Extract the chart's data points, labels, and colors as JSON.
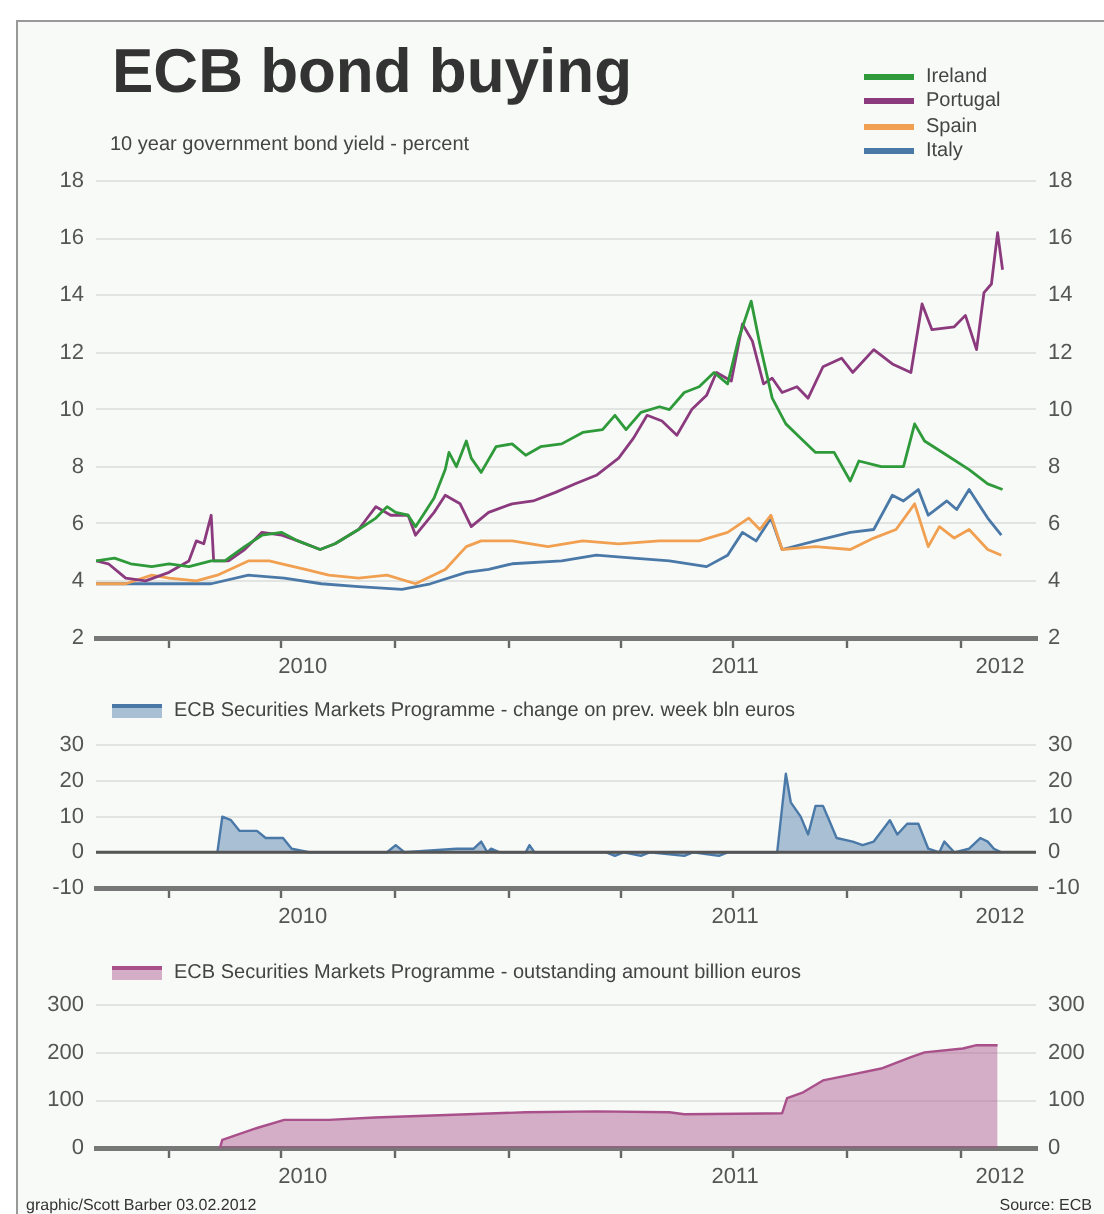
{
  "chart_data": [
    {
      "type": "line",
      "title": "ECB bond buying",
      "subtitle": "10 year government bond yield - percent",
      "legend": "top right",
      "grid": "y",
      "xlim": [
        "2010-02-01",
        "2012-03-01"
      ],
      "xticks": [
        {
          "value": "2010-04-01",
          "label": null
        },
        {
          "value": "2010-07-01",
          "label": null
        },
        {
          "value": "2010-07-18",
          "label": "2010"
        },
        {
          "value": "2010-10-01",
          "label": null
        },
        {
          "value": "2011-01-01",
          "label": null
        },
        {
          "value": "2011-04-01",
          "label": null
        },
        {
          "value": "2011-07-01",
          "label": null
        },
        {
          "value": "2011-07-02",
          "label": "2011"
        },
        {
          "value": "2011-10-01",
          "label": null
        },
        {
          "value": "2012-01-01",
          "label": null
        },
        {
          "value": "2012-02-01",
          "label": "2012"
        }
      ],
      "ylim": [
        2,
        18
      ],
      "yticks": [
        2,
        4,
        6,
        8,
        10,
        12,
        14,
        16,
        18
      ],
      "y2lim": [
        2,
        18
      ],
      "y2ticks": [
        2,
        4,
        6,
        8,
        10,
        12,
        14,
        16,
        18
      ],
      "series": [
        {
          "name": "Ireland",
          "color": "#2e9a3a",
          "x": [
            "2010-02-01",
            "2010-02-16",
            "2010-03-01",
            "2010-03-18",
            "2010-04-01",
            "2010-04-17",
            "2010-05-05",
            "2010-05-16",
            "2010-06-01",
            "2010-06-15",
            "2010-07-01",
            "2010-07-14",
            "2010-08-01",
            "2010-08-13",
            "2010-09-01",
            "2010-09-15",
            "2010-09-24",
            "2010-10-01",
            "2010-10-11",
            "2010-10-17",
            "2010-11-01",
            "2010-11-10",
            "2010-11-13",
            "2010-11-19",
            "2010-11-27",
            "2010-12-01",
            "2010-12-09",
            "2010-12-21",
            "2011-01-03",
            "2011-01-14",
            "2011-01-26",
            "2011-02-12",
            "2011-03-01",
            "2011-03-17",
            "2011-03-27",
            "2011-04-05",
            "2011-04-17",
            "2011-05-02",
            "2011-05-10",
            "2011-05-22",
            "2011-06-03",
            "2011-06-15",
            "2011-06-26",
            "2011-07-05",
            "2011-07-15",
            "2011-07-22",
            "2011-08-01",
            "2011-08-12",
            "2011-08-24",
            "2011-09-05",
            "2011-09-20",
            "2011-10-03",
            "2011-10-10",
            "2011-10-28",
            "2011-11-15",
            "2011-11-24",
            "2011-12-02",
            "2011-12-20",
            "2012-01-07",
            "2012-01-22",
            "2012-02-03"
          ],
          "values": [
            4.7,
            4.8,
            4.6,
            4.5,
            4.6,
            4.5,
            4.7,
            4.7,
            5.2,
            5.6,
            5.7,
            5.4,
            5.1,
            5.3,
            5.8,
            6.2,
            6.6,
            6.4,
            6.3,
            5.9,
            6.9,
            7.9,
            8.5,
            8.0,
            8.9,
            8.3,
            7.8,
            8.7,
            8.8,
            8.4,
            8.7,
            8.8,
            9.2,
            9.3,
            9.8,
            9.3,
            9.9,
            10.1,
            10.0,
            10.6,
            10.8,
            11.3,
            10.9,
            12.5,
            13.8,
            12.3,
            10.4,
            9.5,
            9.0,
            8.5,
            8.5,
            7.5,
            8.2,
            8.0,
            8.0,
            9.5,
            8.9,
            8.4,
            7.9,
            7.4,
            7.2
          ]
        },
        {
          "name": "Portugal",
          "color": "#8b3a7e",
          "x": [
            "2010-02-01",
            "2010-02-11",
            "2010-02-25",
            "2010-03-13",
            "2010-04-01",
            "2010-04-17",
            "2010-04-23",
            "2010-04-29",
            "2010-05-05",
            "2010-05-07",
            "2010-05-19",
            "2010-06-01",
            "2010-06-15",
            "2010-07-01",
            "2010-07-14",
            "2010-08-01",
            "2010-08-13",
            "2010-09-01",
            "2010-09-15",
            "2010-09-27",
            "2010-10-11",
            "2010-10-17",
            "2010-11-01",
            "2010-11-10",
            "2010-11-22",
            "2010-12-01",
            "2010-12-15",
            "2011-01-03",
            "2011-01-20",
            "2011-02-07",
            "2011-02-23",
            "2011-03-12",
            "2011-03-30",
            "2011-04-11",
            "2011-04-22",
            "2011-05-04",
            "2011-05-16",
            "2011-05-28",
            "2011-06-09",
            "2011-06-17",
            "2011-06-29",
            "2011-07-08",
            "2011-07-16",
            "2011-07-25",
            "2011-08-01",
            "2011-08-09",
            "2011-08-21",
            "2011-08-30",
            "2011-09-11",
            "2011-09-26",
            "2011-10-05",
            "2011-10-22",
            "2011-11-06",
            "2011-11-21",
            "2011-11-30",
            "2011-12-08",
            "2011-12-26",
            "2012-01-04",
            "2012-01-13",
            "2012-01-19",
            "2012-01-25",
            "2012-01-30",
            "2012-02-03"
          ],
          "values": [
            4.7,
            4.6,
            4.1,
            4.0,
            4.3,
            4.7,
            5.4,
            5.3,
            6.3,
            4.7,
            4.7,
            5.1,
            5.7,
            5.6,
            5.4,
            5.1,
            5.3,
            5.8,
            6.6,
            6.3,
            6.3,
            5.6,
            6.4,
            7.0,
            6.7,
            5.9,
            6.4,
            6.7,
            6.8,
            7.1,
            7.4,
            7.7,
            8.3,
            9.0,
            9.8,
            9.6,
            9.1,
            10.0,
            10.5,
            11.3,
            11.0,
            13.0,
            12.4,
            10.9,
            11.1,
            10.6,
            10.8,
            10.4,
            11.5,
            11.8,
            11.3,
            12.1,
            11.6,
            11.3,
            13.7,
            12.8,
            12.9,
            13.3,
            12.1,
            14.1,
            14.4,
            16.2,
            14.9
          ]
        },
        {
          "name": "Spain",
          "color": "#f0a050",
          "x": [
            "2010-02-01",
            "2010-02-25",
            "2010-03-18",
            "2010-04-01",
            "2010-04-23",
            "2010-05-10",
            "2010-06-04",
            "2010-06-21",
            "2010-07-01",
            "2010-07-20",
            "2010-08-08",
            "2010-09-01",
            "2010-09-24",
            "2010-10-17",
            "2010-11-10",
            "2010-11-27",
            "2010-12-09",
            "2011-01-03",
            "2011-02-01",
            "2011-03-01",
            "2011-03-30",
            "2011-05-02",
            "2011-06-03",
            "2011-06-26",
            "2011-07-13",
            "2011-07-22",
            "2011-07-31",
            "2011-08-09",
            "2011-09-05",
            "2011-10-03",
            "2011-10-22",
            "2011-11-09",
            "2011-11-24",
            "2011-12-05",
            "2011-12-14",
            "2011-12-26",
            "2012-01-07",
            "2012-01-22",
            "2012-02-02"
          ],
          "values": [
            3.9,
            3.9,
            4.2,
            4.1,
            4.0,
            4.2,
            4.7,
            4.7,
            4.6,
            4.4,
            4.2,
            4.1,
            4.2,
            3.9,
            4.4,
            5.2,
            5.4,
            5.4,
            5.2,
            5.4,
            5.3,
            5.4,
            5.4,
            5.7,
            6.2,
            5.8,
            6.3,
            5.1,
            5.2,
            5.1,
            5.5,
            5.8,
            6.7,
            5.2,
            5.9,
            5.5,
            5.8,
            5.1,
            4.9
          ]
        },
        {
          "name": "Italy",
          "color": "#4a79a8",
          "x": [
            "2010-02-01",
            "2010-03-07",
            "2010-04-01",
            "2010-05-05",
            "2010-06-04",
            "2010-07-03",
            "2010-08-02",
            "2010-09-01",
            "2010-10-06",
            "2010-10-29",
            "2010-11-27",
            "2010-12-15",
            "2011-01-03",
            "2011-02-12",
            "2011-03-12",
            "2011-04-11",
            "2011-05-10",
            "2011-06-09",
            "2011-06-26",
            "2011-07-08",
            "2011-07-19",
            "2011-07-31",
            "2011-08-09",
            "2011-09-05",
            "2011-10-03",
            "2011-10-22",
            "2011-11-06",
            "2011-11-15",
            "2011-11-27",
            "2011-12-05",
            "2011-12-20",
            "2011-12-28",
            "2012-01-07",
            "2012-01-22",
            "2012-02-02"
          ],
          "values": [
            3.9,
            3.9,
            3.9,
            3.9,
            4.2,
            4.1,
            3.9,
            3.8,
            3.7,
            3.9,
            4.3,
            4.4,
            4.6,
            4.7,
            4.9,
            4.8,
            4.7,
            4.5,
            4.9,
            5.7,
            5.4,
            6.2,
            5.1,
            5.4,
            5.7,
            5.8,
            7.0,
            6.8,
            7.2,
            6.3,
            6.8,
            6.5,
            7.2,
            6.2,
            5.6
          ]
        }
      ]
    },
    {
      "type": "area",
      "legend": "top left",
      "grid": "y",
      "xlim": [
        "2010-02-01",
        "2012-03-01"
      ],
      "xticks": [
        {
          "value": "2010-04-01",
          "label": null
        },
        {
          "value": "2010-07-01",
          "label": null
        },
        {
          "value": "2010-07-18",
          "label": "2010"
        },
        {
          "value": "2010-10-01",
          "label": null
        },
        {
          "value": "2011-01-01",
          "label": null
        },
        {
          "value": "2011-04-01",
          "label": null
        },
        {
          "value": "2011-07-01",
          "label": null
        },
        {
          "value": "2011-07-02",
          "label": "2011"
        },
        {
          "value": "2011-10-01",
          "label": null
        },
        {
          "value": "2012-01-01",
          "label": null
        },
        {
          "value": "2012-02-01",
          "label": "2012"
        }
      ],
      "ylim": [
        -10,
        30
      ],
      "yticks": [
        -10,
        0,
        10,
        20,
        30
      ],
      "y2lim": [
        -10,
        30
      ],
      "y2ticks": [
        -10,
        0,
        10,
        20,
        30
      ],
      "ref_lines": [
        {
          "axis": "y",
          "value": 0,
          "color": "#555555"
        }
      ],
      "series": [
        {
          "name": "ECB Securities Markets Programme - change on prev. week bln euros",
          "color": "#4a79a8",
          "x": [
            "2010-05-10",
            "2010-05-14",
            "2010-05-21",
            "2010-05-28",
            "2010-06-11",
            "2010-06-18",
            "2010-07-02",
            "2010-07-09",
            "2010-07-23",
            "2010-08-20",
            "2010-09-24",
            "2010-10-01",
            "2010-10-08",
            "2010-11-19",
            "2010-12-03",
            "2010-12-09",
            "2010-12-14",
            "2010-12-17",
            "2010-12-24",
            "2011-01-14",
            "2011-01-17",
            "2011-01-21",
            "2011-03-20",
            "2011-03-27",
            "2011-04-03",
            "2011-04-17",
            "2011-04-24",
            "2011-05-22",
            "2011-05-29",
            "2011-06-19",
            "2011-06-26",
            "2011-08-05",
            "2011-08-12",
            "2011-08-16",
            "2011-08-24",
            "2011-08-30",
            "2011-09-05",
            "2011-09-11",
            "2011-09-16",
            "2011-09-22",
            "2011-10-05",
            "2011-10-13",
            "2011-10-22",
            "2011-11-04",
            "2011-11-10",
            "2011-11-18",
            "2011-11-27",
            "2011-12-05",
            "2011-12-14",
            "2011-12-18",
            "2011-12-26",
            "2012-01-07",
            "2012-01-16",
            "2012-01-22",
            "2012-01-27",
            "2012-02-02"
          ],
          "values": [
            0,
            10,
            9,
            6,
            6,
            4,
            4,
            1,
            0,
            0,
            0,
            2,
            0,
            1,
            1,
            3,
            0,
            1,
            0,
            0,
            2,
            0,
            0,
            -1,
            0,
            -1,
            0,
            -1,
            0,
            -1,
            0,
            0,
            22,
            14,
            10,
            5,
            13,
            13,
            9,
            4,
            3,
            2,
            3,
            9,
            5,
            8,
            8,
            1,
            0,
            3,
            0,
            1,
            4,
            3,
            1,
            0
          ]
        }
      ]
    },
    {
      "type": "area",
      "legend": "top left",
      "grid": "y",
      "xlim": [
        "2010-02-01",
        "2012-03-01"
      ],
      "xticks": [
        {
          "value": "2010-04-01",
          "label": null
        },
        {
          "value": "2010-07-01",
          "label": null
        },
        {
          "value": "2010-07-18",
          "label": "2010"
        },
        {
          "value": "2010-10-01",
          "label": null
        },
        {
          "value": "2011-01-01",
          "label": null
        },
        {
          "value": "2011-04-01",
          "label": null
        },
        {
          "value": "2011-07-01",
          "label": null
        },
        {
          "value": "2011-07-02",
          "label": "2011"
        },
        {
          "value": "2011-10-01",
          "label": null
        },
        {
          "value": "2012-01-01",
          "label": null
        },
        {
          "value": "2012-02-01",
          "label": "2012"
        }
      ],
      "ylim": [
        0,
        300
      ],
      "yticks": [
        0,
        100,
        200,
        300
      ],
      "y2lim": [
        0,
        300
      ],
      "y2ticks": [
        0,
        100,
        200,
        300
      ],
      "annotations": [
        "graphic/Scott Barber 03.02.2012",
        "Source: ECB"
      ],
      "series": [
        {
          "name": "ECB Securities Markets Programme - outstanding amount billion euros",
          "color": "#a9508a",
          "x": [
            "2010-05-12",
            "2010-05-14",
            "2010-06-11",
            "2010-07-03",
            "2010-08-08",
            "2010-09-14",
            "2010-11-17",
            "2011-01-14",
            "2011-03-12",
            "2011-05-10",
            "2011-05-22",
            "2011-08-09",
            "2011-08-13",
            "2011-08-26",
            "2011-09-11",
            "2011-09-30",
            "2011-10-28",
            "2011-11-21",
            "2011-12-02",
            "2012-01-02",
            "2012-01-13",
            "2012-01-30"
          ],
          "values": [
            0,
            17,
            42,
            59,
            59,
            64,
            70,
            75,
            77,
            75,
            71,
            73,
            105,
            117,
            142,
            152,
            167,
            191,
            201,
            209,
            216,
            216
          ]
        }
      ]
    }
  ]
}
